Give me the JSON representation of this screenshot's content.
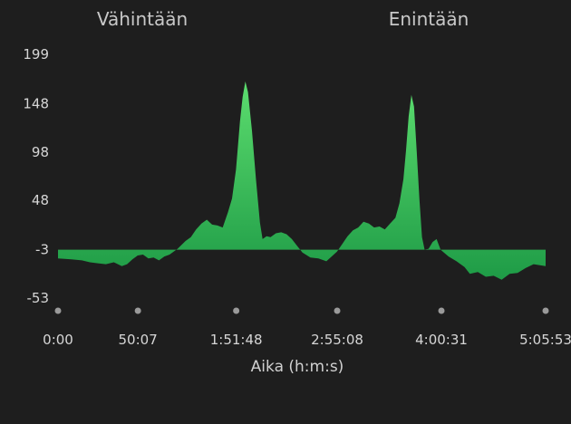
{
  "header": {
    "min_label": "Vähintään",
    "max_label": "Enintään"
  },
  "chart_data": {
    "type": "area",
    "title": "",
    "xlabel": "Aika (h:m:s)",
    "ylabel": "",
    "y_ticks": [
      "199",
      "148",
      "98",
      "48",
      "-3",
      "-53"
    ],
    "y_tick_values": [
      199,
      148,
      98,
      48,
      -3,
      -53
    ],
    "ylim": [
      -53,
      199
    ],
    "x_ticks": [
      "0:00",
      "50:07",
      "1:51:48",
      "2:55:08",
      "4:00:31",
      "5:05:53"
    ],
    "x_tick_seconds": [
      0,
      3007,
      6708,
      10508,
      14431,
      18353
    ],
    "xlim_seconds": [
      0,
      18353
    ],
    "baseline": -3,
    "grid": false,
    "colors": {
      "area_top": "#5fe070",
      "area_bottom": "#1f9c47",
      "background": "#1e1e1e"
    },
    "series": [
      {
        "points": [
          [
            0,
            -12
          ],
          [
            500,
            -13
          ],
          [
            900,
            -14
          ],
          [
            1200,
            -16
          ],
          [
            1500,
            -17
          ],
          [
            1800,
            -18
          ],
          [
            2100,
            -16
          ],
          [
            2400,
            -20
          ],
          [
            2600,
            -18
          ],
          [
            2800,
            -13
          ],
          [
            3000,
            -9
          ],
          [
            3200,
            -8
          ],
          [
            3400,
            -12
          ],
          [
            3600,
            -11
          ],
          [
            3800,
            -14
          ],
          [
            4000,
            -10
          ],
          [
            4200,
            -8
          ],
          [
            4500,
            -2
          ],
          [
            4800,
            6
          ],
          [
            5000,
            10
          ],
          [
            5200,
            18
          ],
          [
            5400,
            24
          ],
          [
            5600,
            28
          ],
          [
            5800,
            23
          ],
          [
            6000,
            22
          ],
          [
            6200,
            20
          ],
          [
            6400,
            36
          ],
          [
            6550,
            50
          ],
          [
            6700,
            80
          ],
          [
            6850,
            130
          ],
          [
            6950,
            155
          ],
          [
            7050,
            171
          ],
          [
            7150,
            160
          ],
          [
            7300,
            120
          ],
          [
            7450,
            70
          ],
          [
            7600,
            25
          ],
          [
            7700,
            8
          ],
          [
            7850,
            11
          ],
          [
            8000,
            10
          ],
          [
            8200,
            14
          ],
          [
            8400,
            15
          ],
          [
            8600,
            13
          ],
          [
            8800,
            8
          ],
          [
            9000,
            1
          ],
          [
            9200,
            -6
          ],
          [
            9500,
            -11
          ],
          [
            9800,
            -12
          ],
          [
            10100,
            -15
          ],
          [
            10300,
            -10
          ],
          [
            10500,
            -5
          ],
          [
            10700,
            3
          ],
          [
            10900,
            11
          ],
          [
            11100,
            17
          ],
          [
            11300,
            20
          ],
          [
            11500,
            26
          ],
          [
            11700,
            24
          ],
          [
            11900,
            20
          ],
          [
            12100,
            21
          ],
          [
            12300,
            18
          ],
          [
            12500,
            24
          ],
          [
            12700,
            30
          ],
          [
            12850,
            45
          ],
          [
            13000,
            70
          ],
          [
            13100,
            100
          ],
          [
            13200,
            135
          ],
          [
            13300,
            157
          ],
          [
            13400,
            145
          ],
          [
            13500,
            100
          ],
          [
            13600,
            50
          ],
          [
            13700,
            10
          ],
          [
            13800,
            -3
          ],
          [
            13950,
            -2
          ],
          [
            14100,
            5
          ],
          [
            14250,
            8
          ],
          [
            14400,
            -3
          ],
          [
            14700,
            -10
          ],
          [
            15000,
            -15
          ],
          [
            15300,
            -21
          ],
          [
            15500,
            -28
          ],
          [
            15800,
            -26
          ],
          [
            16100,
            -31
          ],
          [
            16400,
            -30
          ],
          [
            16700,
            -34
          ],
          [
            17000,
            -28
          ],
          [
            17300,
            -27
          ],
          [
            17600,
            -22
          ],
          [
            17900,
            -18
          ],
          [
            18353,
            -20
          ]
        ]
      }
    ]
  }
}
